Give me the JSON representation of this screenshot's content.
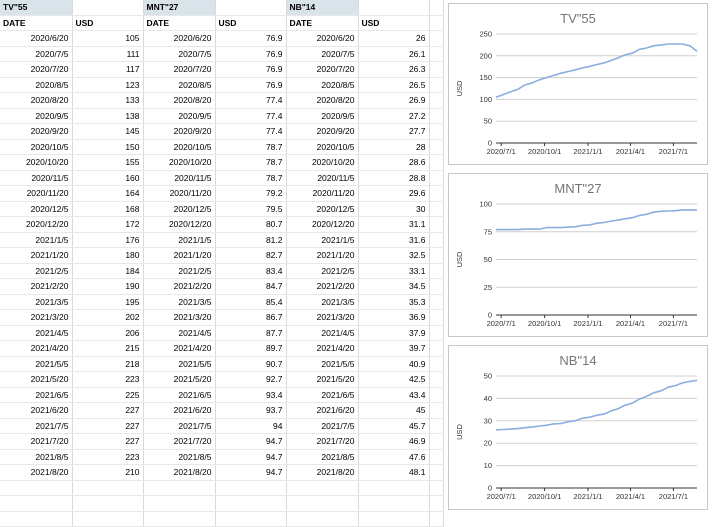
{
  "sheet": {
    "groups": [
      {
        "title": "TV\"55",
        "date_header": "DATE",
        "usd_header": "USD",
        "rows": [
          [
            "2020/6/20",
            "105"
          ],
          [
            "2020/7/5",
            "111"
          ],
          [
            "2020/7/20",
            "117"
          ],
          [
            "2020/8/5",
            "123"
          ],
          [
            "2020/8/20",
            "133"
          ],
          [
            "2020/9/5",
            "138"
          ],
          [
            "2020/9/20",
            "145"
          ],
          [
            "2020/10/5",
            "150"
          ],
          [
            "2020/10/20",
            "155"
          ],
          [
            "2020/11/5",
            "160"
          ],
          [
            "2020/11/20",
            "164"
          ],
          [
            "2020/12/5",
            "168"
          ],
          [
            "2020/12/20",
            "172"
          ],
          [
            "2021/1/5",
            "176"
          ],
          [
            "2021/1/20",
            "180"
          ],
          [
            "2021/2/5",
            "184"
          ],
          [
            "2021/2/20",
            "190"
          ],
          [
            "2021/3/5",
            "195"
          ],
          [
            "2021/3/20",
            "202"
          ],
          [
            "2021/4/5",
            "206"
          ],
          [
            "2021/4/20",
            "215"
          ],
          [
            "2021/5/5",
            "218"
          ],
          [
            "2021/5/20",
            "223"
          ],
          [
            "2021/6/5",
            "225"
          ],
          [
            "2021/6/20",
            "227"
          ],
          [
            "2021/7/5",
            "227"
          ],
          [
            "2021/7/20",
            "227"
          ],
          [
            "2021/8/5",
            "223"
          ],
          [
            "2021/8/20",
            "210"
          ]
        ]
      },
      {
        "title": "MNT\"27",
        "date_header": "DATE",
        "usd_header": "USD",
        "rows": [
          [
            "2020/6/20",
            "76.9"
          ],
          [
            "2020/7/5",
            "76.9"
          ],
          [
            "2020/7/20",
            "76.9"
          ],
          [
            "2020/8/5",
            "76.9"
          ],
          [
            "2020/8/20",
            "77.4"
          ],
          [
            "2020/9/5",
            "77.4"
          ],
          [
            "2020/9/20",
            "77.4"
          ],
          [
            "2020/10/5",
            "78.7"
          ],
          [
            "2020/10/20",
            "78.7"
          ],
          [
            "2020/11/5",
            "78.7"
          ],
          [
            "2020/11/20",
            "79.2"
          ],
          [
            "2020/12/5",
            "79.5"
          ],
          [
            "2020/12/20",
            "80.7"
          ],
          [
            "2021/1/5",
            "81.2"
          ],
          [
            "2021/1/20",
            "82.7"
          ],
          [
            "2021/2/5",
            "83.4"
          ],
          [
            "2021/2/20",
            "84.7"
          ],
          [
            "2021/3/5",
            "85.4"
          ],
          [
            "2021/3/20",
            "86.7"
          ],
          [
            "2021/4/5",
            "87.7"
          ],
          [
            "2021/4/20",
            "89.7"
          ],
          [
            "2021/5/5",
            "90.7"
          ],
          [
            "2021/5/20",
            "92.7"
          ],
          [
            "2021/6/5",
            "93.4"
          ],
          [
            "2021/6/20",
            "93.7"
          ],
          [
            "2021/7/5",
            "94"
          ],
          [
            "2021/7/20",
            "94.7"
          ],
          [
            "2021/8/5",
            "94.7"
          ],
          [
            "2021/8/20",
            "94.7"
          ]
        ]
      },
      {
        "title": "NB\"14",
        "date_header": "DATE",
        "usd_header": "USD",
        "rows": [
          [
            "2020/6/20",
            "26"
          ],
          [
            "2020/7/5",
            "26.1"
          ],
          [
            "2020/7/20",
            "26.3"
          ],
          [
            "2020/8/5",
            "26.5"
          ],
          [
            "2020/8/20",
            "26.9"
          ],
          [
            "2020/9/5",
            "27.2"
          ],
          [
            "2020/9/20",
            "27.7"
          ],
          [
            "2020/10/5",
            "28"
          ],
          [
            "2020/10/20",
            "28.6"
          ],
          [
            "2020/11/5",
            "28.8"
          ],
          [
            "2020/11/20",
            "29.6"
          ],
          [
            "2020/12/5",
            "30"
          ],
          [
            "2020/12/20",
            "31.1"
          ],
          [
            "2021/1/5",
            "31.6"
          ],
          [
            "2021/1/20",
            "32.5"
          ],
          [
            "2021/2/5",
            "33.1"
          ],
          [
            "2021/2/20",
            "34.5"
          ],
          [
            "2021/3/5",
            "35.3"
          ],
          [
            "2021/3/20",
            "36.9"
          ],
          [
            "2021/4/5",
            "37.9"
          ],
          [
            "2021/4/20",
            "39.7"
          ],
          [
            "2021/5/5",
            "40.9"
          ],
          [
            "2021/5/20",
            "42.5"
          ],
          [
            "2021/6/5",
            "43.4"
          ],
          [
            "2021/6/20",
            "45"
          ],
          [
            "2021/7/5",
            "45.7"
          ],
          [
            "2021/7/20",
            "46.9"
          ],
          [
            "2021/8/5",
            "47.6"
          ],
          [
            "2021/8/20",
            "48.1"
          ]
        ]
      }
    ]
  },
  "chart_data": [
    {
      "type": "line",
      "title": "TV\"55",
      "xlabel": "",
      "ylabel": "USD",
      "ylim": [
        0,
        250
      ],
      "yticks": [
        "0",
        "50",
        "100",
        "150",
        "200",
        "250"
      ],
      "xlim": [
        "2020/6/20",
        "2021/8/20"
      ],
      "xticks": [
        "2020/7/1",
        "2020/10/1",
        "2021/1/1",
        "2021/4/1",
        "2021/7/1"
      ],
      "line_color": "#8aaee0",
      "grid": true,
      "legend": "none",
      "x": [
        "2020/6/20",
        "2020/7/5",
        "2020/7/20",
        "2020/8/5",
        "2020/8/20",
        "2020/9/5",
        "2020/9/20",
        "2020/10/5",
        "2020/10/20",
        "2020/11/5",
        "2020/11/20",
        "2020/12/5",
        "2020/12/20",
        "2021/1/5",
        "2021/1/20",
        "2021/2/5",
        "2021/2/20",
        "2021/3/5",
        "2021/3/20",
        "2021/4/5",
        "2021/4/20",
        "2021/5/5",
        "2021/5/20",
        "2021/6/5",
        "2021/6/20",
        "2021/7/5",
        "2021/7/20",
        "2021/8/5",
        "2021/8/20"
      ],
      "values": [
        105,
        111,
        117,
        123,
        133,
        138,
        145,
        150,
        155,
        160,
        164,
        168,
        172,
        176,
        180,
        184,
        190,
        195,
        202,
        206,
        215,
        218,
        223,
        225,
        227,
        227,
        227,
        223,
        210
      ]
    },
    {
      "type": "line",
      "title": "MNT\"27",
      "xlabel": "",
      "ylabel": "USD",
      "ylim": [
        0,
        100
      ],
      "yticks": [
        "0",
        "25",
        "50",
        "75",
        "100"
      ],
      "xlim": [
        "2020/6/20",
        "2021/8/20"
      ],
      "xticks": [
        "2020/7/1",
        "2020/10/1",
        "2021/1/1",
        "2021/4/1",
        "2021/7/1"
      ],
      "line_color": "#8aaee0",
      "grid": true,
      "legend": "none",
      "x": [
        "2020/6/20",
        "2020/7/5",
        "2020/7/20",
        "2020/8/5",
        "2020/8/20",
        "2020/9/5",
        "2020/9/20",
        "2020/10/5",
        "2020/10/20",
        "2020/11/5",
        "2020/11/20",
        "2020/12/5",
        "2020/12/20",
        "2021/1/5",
        "2021/1/20",
        "2021/2/5",
        "2021/2/20",
        "2021/3/5",
        "2021/3/20",
        "2021/4/5",
        "2021/4/20",
        "2021/5/5",
        "2021/5/20",
        "2021/6/5",
        "2021/6/20",
        "2021/7/5",
        "2021/7/20",
        "2021/8/5",
        "2021/8/20"
      ],
      "values": [
        76.9,
        76.9,
        76.9,
        76.9,
        77.4,
        77.4,
        77.4,
        78.7,
        78.7,
        78.7,
        79.2,
        79.5,
        80.7,
        81.2,
        82.7,
        83.4,
        84.7,
        85.4,
        86.7,
        87.7,
        89.7,
        90.7,
        92.7,
        93.4,
        93.7,
        94,
        94.7,
        94.7,
        94.7
      ]
    },
    {
      "type": "line",
      "title": "NB\"14",
      "xlabel": "",
      "ylabel": "USD",
      "ylim": [
        0,
        50
      ],
      "yticks": [
        "0",
        "10",
        "20",
        "30",
        "40",
        "50"
      ],
      "xlim": [
        "2020/6/20",
        "2021/8/20"
      ],
      "xticks": [
        "2020/7/1",
        "2020/10/1",
        "2021/1/1",
        "2021/4/1",
        "2021/7/1"
      ],
      "line_color": "#8aaee0",
      "grid": true,
      "legend": "none",
      "x": [
        "2020/6/20",
        "2020/7/5",
        "2020/7/20",
        "2020/8/5",
        "2020/8/20",
        "2020/9/5",
        "2020/9/20",
        "2020/10/5",
        "2020/10/20",
        "2020/11/5",
        "2020/11/20",
        "2020/12/5",
        "2020/12/20",
        "2021/1/5",
        "2021/1/20",
        "2021/2/5",
        "2021/2/20",
        "2021/3/5",
        "2021/3/20",
        "2021/4/5",
        "2021/4/20",
        "2021/5/5",
        "2021/5/20",
        "2021/6/5",
        "2021/6/20",
        "2021/7/5",
        "2021/7/20",
        "2021/8/5",
        "2021/8/20"
      ],
      "values": [
        26,
        26.1,
        26.3,
        26.5,
        26.9,
        27.2,
        27.7,
        28,
        28.6,
        28.8,
        29.6,
        30,
        31.1,
        31.6,
        32.5,
        33.1,
        34.5,
        35.3,
        36.9,
        37.9,
        39.7,
        40.9,
        42.5,
        43.4,
        45,
        45.7,
        46.9,
        47.6,
        48.1
      ]
    }
  ]
}
